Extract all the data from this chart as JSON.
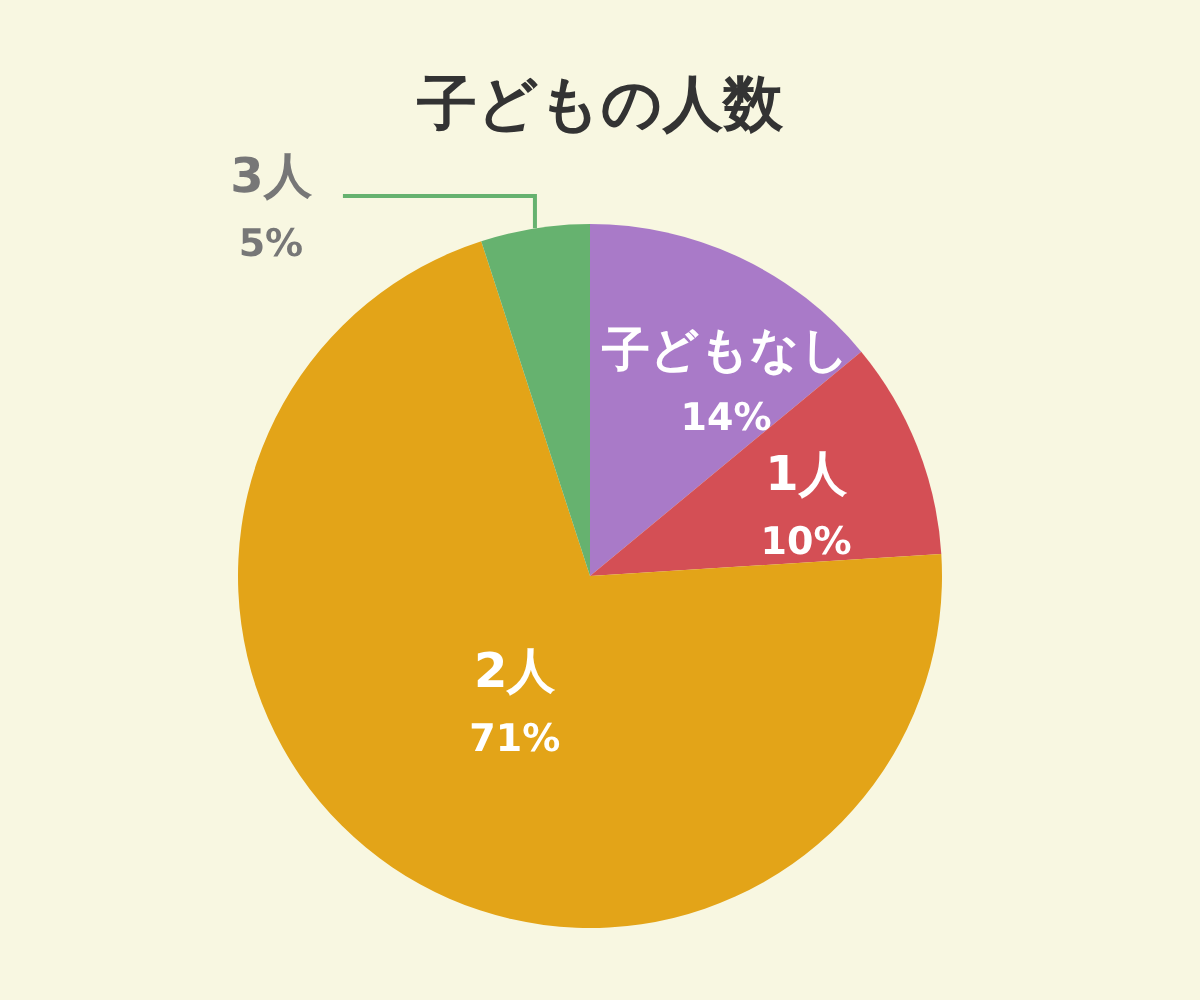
{
  "chart_data": {
    "type": "pie",
    "title": "子どもの人数",
    "categories": [
      "子どもなし",
      "1人",
      "2人",
      "3人"
    ],
    "values": [
      14,
      10,
      71,
      5
    ],
    "value_labels": [
      "14%",
      "10%",
      "71%",
      "5%"
    ],
    "colors": [
      "#a97ac8",
      "#d44f55",
      "#e3a418",
      "#66b26f"
    ]
  }
}
